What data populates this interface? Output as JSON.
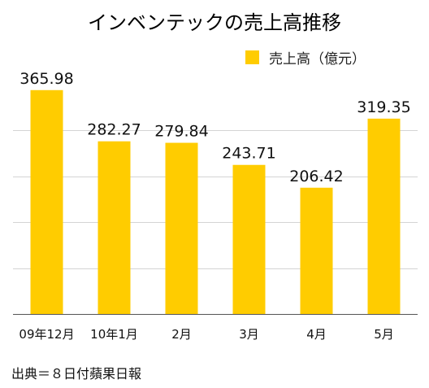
{
  "chart_data": {
    "type": "bar",
    "title": "インベンテックの売上高推移",
    "categories": [
      "09年12月",
      "10年1月",
      "2月",
      "3月",
      "4月",
      "5月"
    ],
    "series": [
      {
        "name": "売上高（億元）",
        "values": [
          365.98,
          282.27,
          279.84,
          243.71,
          206.42,
          319.35
        ]
      }
    ],
    "value_labels": [
      "365.98",
      "282.27",
      "279.84",
      "243.71",
      "206.42",
      "319.35"
    ],
    "ylim": [
      0,
      375
    ],
    "y_ticks": [
      75,
      150,
      225,
      300
    ],
    "grid": true,
    "legend": "top-right",
    "colors": {
      "bar": "#FFCC00",
      "grid": "#d4d4d4",
      "axis": "#555555",
      "text": "#111111"
    }
  },
  "source_note": "出典＝８日付蘋果日報"
}
